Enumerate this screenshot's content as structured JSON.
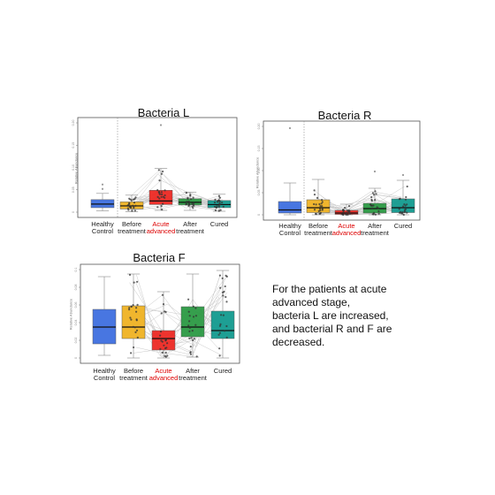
{
  "colors": {
    "healthy": "#3f6fe0",
    "before": "#f0b323",
    "acute": "#ee2a24",
    "after": "#2c9a44",
    "cured": "#139a8f",
    "acute_label": "#dd0000"
  },
  "note": {
    "lines": [
      "For the patients at acute",
      "advanced stage,",
      "bacteria L are increased,",
      "and bacterial R and F are",
      "decreased."
    ]
  },
  "chart_data": [
    {
      "type": "box",
      "title": "Bacteria L",
      "ylabel": "Relative Abundance",
      "ylim": [
        0,
        0.2
      ],
      "yticks": [
        "0",
        "0.05",
        "0.10",
        "0.15",
        "0.20"
      ],
      "categories": [
        {
          "line1": "Healthy",
          "line2": "Control",
          "highlight": false
        },
        {
          "line1": "Before",
          "line2": "treatment",
          "highlight": false
        },
        {
          "line1": "Acute",
          "line2": "advanced",
          "highlight": true
        },
        {
          "line1": "After",
          "line2": "treatment",
          "highlight": false
        },
        {
          "line1": "Cured",
          "line2": "",
          "highlight": false
        }
      ],
      "boxes": [
        {
          "q1": 0.01,
          "median": 0.018,
          "q3": 0.028,
          "wlo": 0.003,
          "whi": 0.042,
          "out": [
            0.062,
            0.052
          ]
        },
        {
          "q1": 0.007,
          "median": 0.014,
          "q3": 0.023,
          "wlo": 0.001,
          "whi": 0.038,
          "out": []
        },
        {
          "q1": 0.017,
          "median": 0.025,
          "q3": 0.049,
          "wlo": 0.004,
          "whi": 0.098,
          "out": [
            0.195
          ]
        },
        {
          "q1": 0.016,
          "median": 0.022,
          "q3": 0.03,
          "wlo": 0.004,
          "whi": 0.045,
          "out": []
        },
        {
          "q1": 0.01,
          "median": 0.017,
          "q3": 0.026,
          "wlo": 0.002,
          "whi": 0.04,
          "out": []
        }
      ]
    },
    {
      "type": "box",
      "title": "Bacteria R",
      "ylabel": "Relative Abundance",
      "ylim": [
        0,
        0.2
      ],
      "yticks": [
        "0",
        "0.05",
        "0.10",
        "0.15",
        "0.20"
      ],
      "categories": [
        {
          "line1": "Healthy",
          "line2": "Control",
          "highlight": false
        },
        {
          "line1": "Before",
          "line2": "treatment",
          "highlight": false
        },
        {
          "line1": "Acute",
          "line2": "advanced",
          "highlight": true
        },
        {
          "line1": "After",
          "line2": "treatment",
          "highlight": false
        },
        {
          "line1": "Cured",
          "line2": "",
          "highlight": false
        }
      ],
      "boxes": [
        {
          "q1": 0.004,
          "median": 0.011,
          "q3": 0.03,
          "wlo": 0.0,
          "whi": 0.072,
          "out": [
            0.196
          ]
        },
        {
          "q1": 0.005,
          "median": 0.016,
          "q3": 0.034,
          "wlo": 0.0,
          "whi": 0.08,
          "out": []
        },
        {
          "q1": 0.001,
          "median": 0.004,
          "q3": 0.01,
          "wlo": 0.0,
          "whi": 0.024,
          "out": []
        },
        {
          "q1": 0.004,
          "median": 0.014,
          "q3": 0.026,
          "wlo": 0.0,
          "whi": 0.06,
          "out": [
            0.098
          ]
        },
        {
          "q1": 0.005,
          "median": 0.016,
          "q3": 0.036,
          "wlo": 0.0,
          "whi": 0.078,
          "out": [
            0.09
          ]
        }
      ]
    },
    {
      "type": "box",
      "title": "Bacteria F",
      "ylabel": "Relative Abundance",
      "ylim": [
        0,
        0.1
      ],
      "yticks": [
        "0",
        "0.02",
        "0.04",
        "0.06",
        "0.08",
        "0.1"
      ],
      "categories": [
        {
          "line1": "Healthy",
          "line2": "Control",
          "highlight": false
        },
        {
          "line1": "Before",
          "line2": "treatment",
          "highlight": false
        },
        {
          "line1": "Acute",
          "line2": "advanced",
          "highlight": true
        },
        {
          "line1": "After",
          "line2": "treatment",
          "highlight": false
        },
        {
          "line1": "Cured",
          "line2": "",
          "highlight": false
        }
      ],
      "boxes": [
        {
          "q1": 0.016,
          "median": 0.035,
          "q3": 0.055,
          "wlo": 0.003,
          "whi": 0.092,
          "out": []
        },
        {
          "q1": 0.022,
          "median": 0.035,
          "q3": 0.059,
          "wlo": 0.0,
          "whi": 0.095,
          "out": []
        },
        {
          "q1": 0.009,
          "median": 0.022,
          "q3": 0.031,
          "wlo": 0.0,
          "whi": 0.075,
          "out": []
        },
        {
          "q1": 0.024,
          "median": 0.035,
          "q3": 0.058,
          "wlo": 0.001,
          "whi": 0.095,
          "out": []
        },
        {
          "q1": 0.022,
          "median": 0.031,
          "q3": 0.053,
          "wlo": 0.0,
          "whi": 0.099,
          "out": []
        }
      ]
    }
  ]
}
